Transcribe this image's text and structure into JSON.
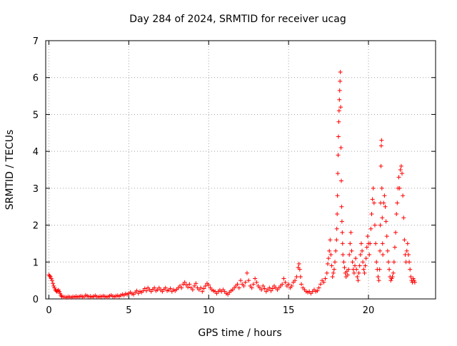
{
  "chart_data": {
    "type": "scatter",
    "title": "Day 284 of 2024, SRMTID for receiver ucag",
    "xlabel": "GPS time / hours",
    "ylabel": "SRMTID / TECUs",
    "xlim": [
      -0.2,
      24.2
    ],
    "ylim": [
      0,
      7
    ],
    "x_ticks": [
      0,
      5,
      10,
      15,
      20
    ],
    "x_tick_labels": [
      "0",
      "5",
      "10",
      "15",
      "20"
    ],
    "y_ticks": [
      0,
      1,
      2,
      3,
      4,
      5,
      6,
      7
    ],
    "y_tick_labels": [
      "0",
      "1",
      "2",
      "3",
      "4",
      "5",
      "6",
      "7"
    ],
    "grid": true,
    "marker": "plus",
    "series": [
      {
        "name": "SRMTID",
        "color": "#ff0000",
        "points": [
          [
            0.0,
            0.65
          ],
          [
            0.05,
            0.62
          ],
          [
            0.1,
            0.6
          ],
          [
            0.15,
            0.55
          ],
          [
            0.2,
            0.5
          ],
          [
            0.25,
            0.42
          ],
          [
            0.3,
            0.35
          ],
          [
            0.35,
            0.3
          ],
          [
            0.4,
            0.25
          ],
          [
            0.45,
            0.22
          ],
          [
            0.5,
            0.2
          ],
          [
            0.55,
            0.22
          ],
          [
            0.6,
            0.24
          ],
          [
            0.65,
            0.2
          ],
          [
            0.7,
            0.15
          ],
          [
            0.75,
            0.1
          ],
          [
            0.8,
            0.07
          ],
          [
            0.9,
            0.05
          ],
          [
            1.0,
            0.05
          ],
          [
            1.1,
            0.04
          ],
          [
            1.2,
            0.06
          ],
          [
            1.3,
            0.05
          ],
          [
            1.4,
            0.04
          ],
          [
            1.5,
            0.06
          ],
          [
            1.6,
            0.05
          ],
          [
            1.7,
            0.07
          ],
          [
            1.8,
            0.05
          ],
          [
            1.9,
            0.06
          ],
          [
            2.0,
            0.08
          ],
          [
            2.1,
            0.06
          ],
          [
            2.2,
            0.05
          ],
          [
            2.3,
            0.1
          ],
          [
            2.4,
            0.08
          ],
          [
            2.5,
            0.06
          ],
          [
            2.6,
            0.07
          ],
          [
            2.7,
            0.05
          ],
          [
            2.8,
            0.07
          ],
          [
            2.9,
            0.09
          ],
          [
            3.0,
            0.06
          ],
          [
            3.1,
            0.05
          ],
          [
            3.2,
            0.07
          ],
          [
            3.3,
            0.06
          ],
          [
            3.4,
            0.08
          ],
          [
            3.5,
            0.07
          ],
          [
            3.6,
            0.05
          ],
          [
            3.7,
            0.06
          ],
          [
            3.8,
            0.08
          ],
          [
            3.9,
            0.1
          ],
          [
            4.0,
            0.07
          ],
          [
            4.1,
            0.06
          ],
          [
            4.2,
            0.08
          ],
          [
            4.3,
            0.09
          ],
          [
            4.4,
            0.07
          ],
          [
            4.5,
            0.1
          ],
          [
            4.6,
            0.12
          ],
          [
            4.7,
            0.1
          ],
          [
            4.8,
            0.14
          ],
          [
            4.9,
            0.12
          ],
          [
            5.0,
            0.15
          ],
          [
            5.1,
            0.18
          ],
          [
            5.2,
            0.14
          ],
          [
            5.3,
            0.12
          ],
          [
            5.4,
            0.18
          ],
          [
            5.5,
            0.22
          ],
          [
            5.6,
            0.15
          ],
          [
            5.7,
            0.2
          ],
          [
            5.8,
            0.18
          ],
          [
            5.9,
            0.22
          ],
          [
            6.0,
            0.28
          ],
          [
            6.1,
            0.22
          ],
          [
            6.2,
            0.3
          ],
          [
            6.3,
            0.25
          ],
          [
            6.4,
            0.2
          ],
          [
            6.5,
            0.26
          ],
          [
            6.6,
            0.3
          ],
          [
            6.7,
            0.22
          ],
          [
            6.8,
            0.25
          ],
          [
            6.9,
            0.3
          ],
          [
            7.0,
            0.24
          ],
          [
            7.1,
            0.2
          ],
          [
            7.2,
            0.26
          ],
          [
            7.3,
            0.3
          ],
          [
            7.4,
            0.22
          ],
          [
            7.5,
            0.24
          ],
          [
            7.6,
            0.28
          ],
          [
            7.7,
            0.2
          ],
          [
            7.8,
            0.25
          ],
          [
            7.9,
            0.22
          ],
          [
            8.0,
            0.26
          ],
          [
            8.1,
            0.3
          ],
          [
            8.2,
            0.35
          ],
          [
            8.3,
            0.3
          ],
          [
            8.4,
            0.4
          ],
          [
            8.5,
            0.45
          ],
          [
            8.6,
            0.38
          ],
          [
            8.7,
            0.32
          ],
          [
            8.8,
            0.4
          ],
          [
            8.9,
            0.3
          ],
          [
            9.0,
            0.25
          ],
          [
            9.1,
            0.35
          ],
          [
            9.2,
            0.42
          ],
          [
            9.3,
            0.3
          ],
          [
            9.4,
            0.25
          ],
          [
            9.5,
            0.3
          ],
          [
            9.6,
            0.2
          ],
          [
            9.7,
            0.28
          ],
          [
            9.8,
            0.35
          ],
          [
            9.9,
            0.42
          ],
          [
            10.0,
            0.38
          ],
          [
            10.1,
            0.3
          ],
          [
            10.2,
            0.25
          ],
          [
            10.3,
            0.22
          ],
          [
            10.4,
            0.2
          ],
          [
            10.5,
            0.15
          ],
          [
            10.6,
            0.2
          ],
          [
            10.7,
            0.24
          ],
          [
            10.8,
            0.2
          ],
          [
            10.9,
            0.25
          ],
          [
            11.0,
            0.2
          ],
          [
            11.1,
            0.15
          ],
          [
            11.2,
            0.12
          ],
          [
            11.3,
            0.18
          ],
          [
            11.4,
            0.22
          ],
          [
            11.5,
            0.25
          ],
          [
            11.6,
            0.3
          ],
          [
            11.7,
            0.35
          ],
          [
            11.8,
            0.4
          ],
          [
            11.9,
            0.3
          ],
          [
            12.0,
            0.5
          ],
          [
            12.1,
            0.4
          ],
          [
            12.2,
            0.35
          ],
          [
            12.3,
            0.45
          ],
          [
            12.4,
            0.7
          ],
          [
            12.5,
            0.5
          ],
          [
            12.6,
            0.35
          ],
          [
            12.7,
            0.3
          ],
          [
            12.8,
            0.4
          ],
          [
            12.9,
            0.55
          ],
          [
            13.0,
            0.45
          ],
          [
            13.1,
            0.35
          ],
          [
            13.2,
            0.3
          ],
          [
            13.3,
            0.25
          ],
          [
            13.4,
            0.35
          ],
          [
            13.5,
            0.28
          ],
          [
            13.6,
            0.2
          ],
          [
            13.7,
            0.25
          ],
          [
            13.8,
            0.3
          ],
          [
            13.9,
            0.22
          ],
          [
            14.0,
            0.28
          ],
          [
            14.1,
            0.35
          ],
          [
            14.2,
            0.3
          ],
          [
            14.3,
            0.25
          ],
          [
            14.4,
            0.3
          ],
          [
            14.5,
            0.35
          ],
          [
            14.6,
            0.4
          ],
          [
            14.7,
            0.55
          ],
          [
            14.8,
            0.45
          ],
          [
            14.9,
            0.35
          ],
          [
            15.0,
            0.4
          ],
          [
            15.1,
            0.3
          ],
          [
            15.2,
            0.35
          ],
          [
            15.3,
            0.45
          ],
          [
            15.4,
            0.5
          ],
          [
            15.5,
            0.6
          ],
          [
            15.6,
            0.85
          ],
          [
            15.65,
            0.95
          ],
          [
            15.7,
            0.8
          ],
          [
            15.75,
            0.6
          ],
          [
            15.8,
            0.4
          ],
          [
            15.9,
            0.3
          ],
          [
            16.0,
            0.25
          ],
          [
            16.1,
            0.2
          ],
          [
            16.2,
            0.18
          ],
          [
            16.3,
            0.2
          ],
          [
            16.4,
            0.15
          ],
          [
            16.5,
            0.2
          ],
          [
            16.6,
            0.25
          ],
          [
            16.7,
            0.2
          ],
          [
            16.8,
            0.22
          ],
          [
            16.9,
            0.3
          ],
          [
            17.0,
            0.4
          ],
          [
            17.1,
            0.5
          ],
          [
            17.2,
            0.45
          ],
          [
            17.3,
            0.55
          ],
          [
            17.4,
            0.7
          ],
          [
            17.45,
            0.95
          ],
          [
            17.5,
            1.1
          ],
          [
            17.55,
            1.3
          ],
          [
            17.6,
            1.6
          ],
          [
            17.65,
            1.2
          ],
          [
            17.7,
            0.9
          ],
          [
            17.75,
            0.6
          ],
          [
            17.8,
            0.7
          ],
          [
            17.85,
            0.8
          ],
          [
            17.9,
            1.0
          ],
          [
            17.95,
            1.3
          ],
          [
            18.0,
            1.6
          ],
          [
            18.02,
            1.9
          ],
          [
            18.04,
            2.3
          ],
          [
            18.06,
            2.8
          ],
          [
            18.08,
            3.4
          ],
          [
            18.1,
            3.9
          ],
          [
            18.12,
            4.4
          ],
          [
            18.14,
            4.8
          ],
          [
            18.16,
            5.1
          ],
          [
            18.18,
            5.4
          ],
          [
            18.2,
            5.65
          ],
          [
            18.22,
            5.9
          ],
          [
            18.24,
            6.15
          ],
          [
            18.26,
            5.2
          ],
          [
            18.28,
            4.1
          ],
          [
            18.3,
            3.2
          ],
          [
            18.32,
            2.5
          ],
          [
            18.34,
            2.1
          ],
          [
            18.36,
            1.8
          ],
          [
            18.38,
            1.5
          ],
          [
            18.4,
            1.2
          ],
          [
            18.45,
            1.0
          ],
          [
            18.5,
            0.85
          ],
          [
            18.55,
            0.7
          ],
          [
            18.6,
            0.6
          ],
          [
            18.65,
            0.75
          ],
          [
            18.7,
            0.65
          ],
          [
            18.75,
            0.8
          ],
          [
            18.8,
            1.2
          ],
          [
            18.85,
            1.5
          ],
          [
            18.9,
            1.8
          ],
          [
            18.95,
            1.3
          ],
          [
            19.0,
            1.0
          ],
          [
            19.05,
            0.8
          ],
          [
            19.1,
            0.7
          ],
          [
            19.15,
            0.9
          ],
          [
            19.2,
            1.1
          ],
          [
            19.25,
            0.8
          ],
          [
            19.3,
            0.6
          ],
          [
            19.35,
            0.5
          ],
          [
            19.4,
            0.7
          ],
          [
            19.45,
            0.9
          ],
          [
            19.5,
            1.2
          ],
          [
            19.55,
            1.5
          ],
          [
            19.6,
            1.3
          ],
          [
            19.65,
            1.0
          ],
          [
            19.7,
            0.8
          ],
          [
            19.75,
            0.7
          ],
          [
            19.8,
            0.9
          ],
          [
            19.85,
            1.1
          ],
          [
            19.9,
            1.4
          ],
          [
            19.95,
            1.7
          ],
          [
            20.0,
            1.5
          ],
          [
            20.05,
            1.2
          ],
          [
            20.1,
            1.5
          ],
          [
            20.15,
            1.9
          ],
          [
            20.2,
            2.3
          ],
          [
            20.25,
            2.7
          ],
          [
            20.3,
            3.0
          ],
          [
            20.35,
            2.6
          ],
          [
            20.4,
            2.0
          ],
          [
            20.45,
            1.5
          ],
          [
            20.5,
            1.0
          ],
          [
            20.55,
            0.8
          ],
          [
            20.6,
            0.6
          ],
          [
            20.65,
            0.5
          ],
          [
            20.7,
            0.8
          ],
          [
            20.72,
            1.3
          ],
          [
            20.74,
            2.0
          ],
          [
            20.76,
            2.6
          ],
          [
            20.78,
            3.6
          ],
          [
            20.8,
            4.15
          ],
          [
            20.82,
            4.3
          ],
          [
            20.84,
            3.0
          ],
          [
            20.86,
            2.2
          ],
          [
            20.88,
            1.5
          ],
          [
            20.9,
            1.2
          ],
          [
            20.95,
            2.6
          ],
          [
            21.0,
            2.8
          ],
          [
            21.05,
            2.5
          ],
          [
            21.1,
            2.1
          ],
          [
            21.15,
            1.7
          ],
          [
            21.2,
            1.3
          ],
          [
            21.25,
            1.0
          ],
          [
            21.3,
            0.8
          ],
          [
            21.35,
            0.6
          ],
          [
            21.4,
            0.5
          ],
          [
            21.45,
            0.55
          ],
          [
            21.5,
            0.6
          ],
          [
            21.55,
            0.7
          ],
          [
            21.6,
            1.0
          ],
          [
            21.65,
            1.4
          ],
          [
            21.7,
            1.8
          ],
          [
            21.75,
            2.3
          ],
          [
            21.8,
            2.6
          ],
          [
            21.85,
            3.0
          ],
          [
            21.9,
            3.3
          ],
          [
            21.95,
            3.0
          ],
          [
            22.0,
            3.5
          ],
          [
            22.05,
            3.6
          ],
          [
            22.1,
            3.4
          ],
          [
            22.15,
            2.8
          ],
          [
            22.2,
            2.2
          ],
          [
            22.25,
            1.6
          ],
          [
            22.3,
            1.2
          ],
          [
            22.35,
            1.0
          ],
          [
            22.4,
            1.3
          ],
          [
            22.45,
            1.5
          ],
          [
            22.5,
            1.2
          ],
          [
            22.55,
            1.0
          ],
          [
            22.6,
            0.8
          ],
          [
            22.65,
            0.6
          ],
          [
            22.7,
            0.5
          ],
          [
            22.75,
            0.45
          ],
          [
            22.8,
            0.55
          ],
          [
            22.85,
            0.5
          ],
          [
            22.9,
            0.45
          ]
        ]
      }
    ]
  }
}
